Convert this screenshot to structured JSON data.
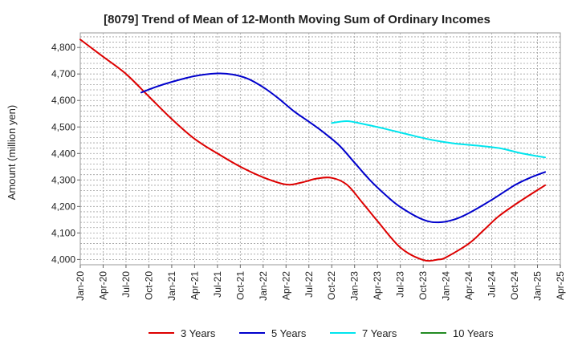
{
  "chart_data": {
    "type": "line",
    "title": "[8079]  Trend of Mean of 12-Month Moving Sum of Ordinary Incomes",
    "xlabel": "",
    "ylabel": "Amount (million yen)",
    "ylim": [
      3980,
      4855
    ],
    "ytick_values": [
      4000,
      4100,
      4200,
      4300,
      4400,
      4500,
      4600,
      4700,
      4800
    ],
    "ytick_labels": [
      "4,000",
      "4,100",
      "4,200",
      "4,300",
      "4,400",
      "4,500",
      "4,600",
      "4,700",
      "4,800"
    ],
    "xtick_labels": [
      "Jan-20",
      "Apr-20",
      "Jul-20",
      "Oct-20",
      "Jan-21",
      "Apr-21",
      "Jul-21",
      "Oct-21",
      "Jan-22",
      "Apr-22",
      "Jul-22",
      "Oct-22",
      "Jan-23",
      "Apr-23",
      "Jul-23",
      "Oct-23",
      "Jan-24",
      "Apr-24",
      "Jul-24",
      "Oct-24",
      "Jan-25",
      "Apr-25"
    ],
    "x_unit": "month index from Jan-20",
    "xlim": [
      0,
      63
    ],
    "grid": true,
    "legend_position": "bottom",
    "series": [
      {
        "name": "3 Years",
        "color": "#dd0000",
        "x": [
          0,
          3,
          6,
          9,
          12,
          15,
          18,
          21,
          24,
          27,
          29,
          31,
          33,
          35,
          37,
          39,
          42,
          45,
          47,
          48,
          51,
          53,
          55,
          58,
          61
        ],
        "values": [
          4830,
          4765,
          4700,
          4615,
          4530,
          4455,
          4400,
          4350,
          4310,
          4283,
          4290,
          4305,
          4308,
          4282,
          4215,
          4145,
          4045,
          3998,
          4000,
          4008,
          4060,
          4112,
          4165,
          4225,
          4280
        ]
      },
      {
        "name": "5 Years",
        "color": "#0000cc",
        "x": [
          8,
          10,
          12,
          15,
          18,
          20,
          22,
          24,
          26,
          28,
          30,
          32,
          34,
          36,
          38,
          40,
          42,
          45,
          47,
          49,
          51,
          54,
          57,
          59,
          61
        ],
        "values": [
          4630,
          4652,
          4670,
          4692,
          4702,
          4698,
          4682,
          4650,
          4608,
          4560,
          4520,
          4478,
          4430,
          4365,
          4300,
          4245,
          4198,
          4150,
          4140,
          4150,
          4175,
          4225,
          4280,
          4308,
          4330
        ]
      },
      {
        "name": "7 Years",
        "color": "#00e5ee",
        "x": [
          33,
          35,
          37,
          40,
          43,
          46,
          49,
          52,
          55,
          58,
          61
        ],
        "values": [
          4515,
          4522,
          4512,
          4493,
          4472,
          4452,
          4438,
          4430,
          4420,
          4400,
          4385
        ]
      },
      {
        "name": "10 Years",
        "color": "#228b22",
        "x": [],
        "values": []
      }
    ]
  }
}
